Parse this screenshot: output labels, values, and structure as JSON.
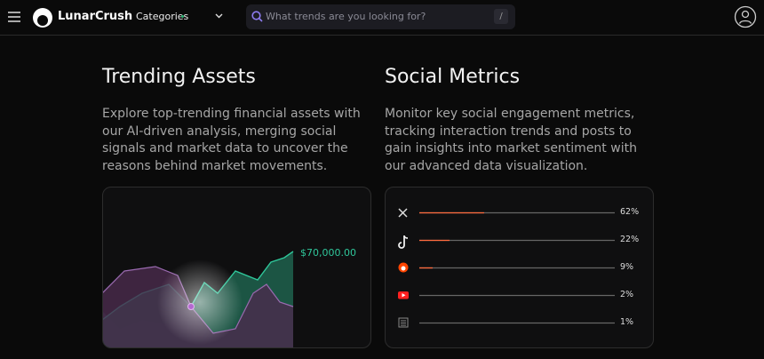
{
  "header": {
    "brand": "LunarCrush",
    "categories": "Categories",
    "search_placeholder": "What trends are you looking for?",
    "search_shortcut": "/"
  },
  "sections": [
    {
      "title": "Trending Assets",
      "description": "Explore top-trending financial assets with our AI-driven analysis, merging social signals and market data to uncover the reasons behind market movements.",
      "price": "$70,000.00"
    },
    {
      "title": "Social Metrics",
      "description": "Monitor key social engagement metrics, tracking interaction trends and posts to gain insights into market sentiment with our advanced data visualization.",
      "metrics": [
        "62%",
        "22%",
        "9%",
        "2%",
        "1%"
      ]
    }
  ]
}
